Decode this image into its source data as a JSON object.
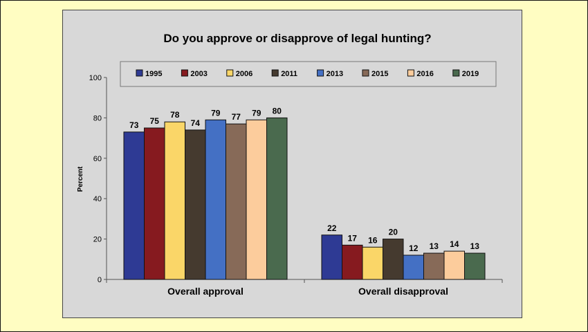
{
  "chart_data": {
    "type": "bar",
    "title": "Do you approve or disapprove of legal hunting?",
    "xlabel": "",
    "ylabel": "Percent",
    "ylim": [
      0,
      100
    ],
    "yticks": [
      0,
      20,
      40,
      60,
      80,
      100
    ],
    "grid": false,
    "legend": "top",
    "categories": [
      "Overall approval",
      "Overall disapproval"
    ],
    "series": [
      {
        "name": "1995",
        "color": "#2e3a94",
        "values": [
          73,
          22
        ]
      },
      {
        "name": "2003",
        "color": "#861a1f",
        "values": [
          75,
          17
        ]
      },
      {
        "name": "2006",
        "color": "#fad668",
        "values": [
          78,
          16
        ]
      },
      {
        "name": "2011",
        "color": "#453a2f",
        "values": [
          74,
          20
        ]
      },
      {
        "name": "2013",
        "color": "#4470c4",
        "values": [
          79,
          12
        ]
      },
      {
        "name": "2015",
        "color": "#876a58",
        "values": [
          77,
          13
        ]
      },
      {
        "name": "2016",
        "color": "#fccc9c",
        "values": [
          79,
          14
        ]
      },
      {
        "name": "2019",
        "color": "#4a6a4e",
        "values": [
          80,
          13
        ]
      }
    ]
  }
}
